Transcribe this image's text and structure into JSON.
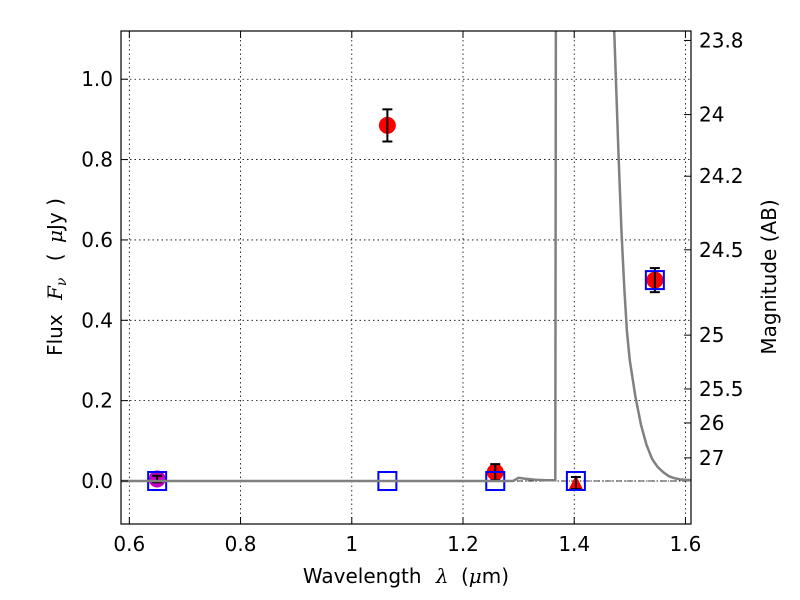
{
  "chart_data": {
    "type": "scatter",
    "title": "",
    "xlabel": {
      "prefix": "Wavelength",
      "symbol": "λ",
      "unit_open": "(",
      "unit_mu": "μ",
      "unit_rest": "m)"
    },
    "ylabel": {
      "prefix": "Flux",
      "symbol": "F",
      "subscript": "ν",
      "unit_open": "(",
      "unit_mu": "μ",
      "unit_rest": "Jy )"
    },
    "y2label": "Magnitude (AB)",
    "xlim": [
      0.585,
      1.61
    ],
    "ylim": [
      -0.107,
      1.12
    ],
    "grid": true,
    "xticks": [
      {
        "v": 0.6,
        "label": "0.6"
      },
      {
        "v": 0.8,
        "label": "0.8"
      },
      {
        "v": 1.0,
        "label": "1"
      },
      {
        "v": 1.2,
        "label": "1.2"
      },
      {
        "v": 1.4,
        "label": "1.4"
      },
      {
        "v": 1.6,
        "label": "1.6"
      }
    ],
    "yticks": [
      {
        "v": 0.0,
        "label": "0.0"
      },
      {
        "v": 0.2,
        "label": "0.2"
      },
      {
        "v": 0.4,
        "label": "0.4"
      },
      {
        "v": 0.6,
        "label": "0.6"
      },
      {
        "v": 0.8,
        "label": "0.8"
      },
      {
        "v": 1.0,
        "label": "1.0"
      }
    ],
    "y2ticks": [
      {
        "mag": 23.8,
        "label": "23.8"
      },
      {
        "mag": 24.0,
        "label": "24"
      },
      {
        "mag": 24.2,
        "label": "24.2"
      },
      {
        "mag": 24.5,
        "label": "24.5"
      },
      {
        "mag": 25.0,
        "label": "25"
      },
      {
        "mag": 25.5,
        "label": "25.5"
      },
      {
        "mag": 26.0,
        "label": "26"
      },
      {
        "mag": 27.0,
        "label": "27"
      }
    ],
    "series": [
      {
        "kind": "observed",
        "marker": "circle",
        "color": "#ff0000",
        "points": [
          {
            "x": 1.064,
            "y": 0.885,
            "err": 0.04
          },
          {
            "x": 1.258,
            "y": 0.022,
            "err": 0.02
          },
          {
            "x": 1.545,
            "y": 0.5,
            "err": 0.03
          }
        ]
      },
      {
        "kind": "observed-optical",
        "marker": "circle",
        "color": "#bf00bf",
        "points": [
          {
            "x": 0.65,
            "y": 0.005,
            "err": 0.008
          }
        ]
      },
      {
        "kind": "upper-limit",
        "marker": "triangle",
        "color": "#ff0000",
        "points": [
          {
            "x": 1.403,
            "y": -0.005,
            "err": 0.015
          }
        ]
      },
      {
        "kind": "model",
        "marker": "square-open",
        "color": "#0000ff",
        "points": [
          {
            "x": 0.65,
            "y": 0.0
          },
          {
            "x": 1.064,
            "y": 0.0
          },
          {
            "x": 1.258,
            "y": 0.0
          },
          {
            "x": 1.403,
            "y": 0.0
          },
          {
            "x": 1.545,
            "y": 0.5
          }
        ]
      },
      {
        "kind": "template-spectrum",
        "line": true,
        "color": "#808080",
        "points": [
          [
            0.585,
            0.0
          ],
          [
            1.29,
            0.0
          ],
          [
            1.3,
            0.008
          ],
          [
            1.31,
            0.006
          ],
          [
            1.33,
            0.003
          ],
          [
            1.35,
            0.002
          ],
          [
            1.366,
            0.002
          ],
          [
            1.367,
            1.2
          ],
          [
            1.47,
            1.2
          ],
          [
            1.475,
            1.0
          ],
          [
            1.48,
            0.8
          ],
          [
            1.485,
            0.62
          ],
          [
            1.49,
            0.48
          ],
          [
            1.495,
            0.37
          ],
          [
            1.5,
            0.3
          ],
          [
            1.51,
            0.21
          ],
          [
            1.52,
            0.14
          ],
          [
            1.53,
            0.09
          ],
          [
            1.54,
            0.055
          ],
          [
            1.55,
            0.035
          ],
          [
            1.56,
            0.022
          ],
          [
            1.57,
            0.012
          ],
          [
            1.58,
            0.007
          ],
          [
            1.59,
            0.004
          ],
          [
            1.61,
            0.002
          ]
        ]
      }
    ],
    "zero_line": {
      "y": 0.0,
      "color": "#000000"
    }
  }
}
